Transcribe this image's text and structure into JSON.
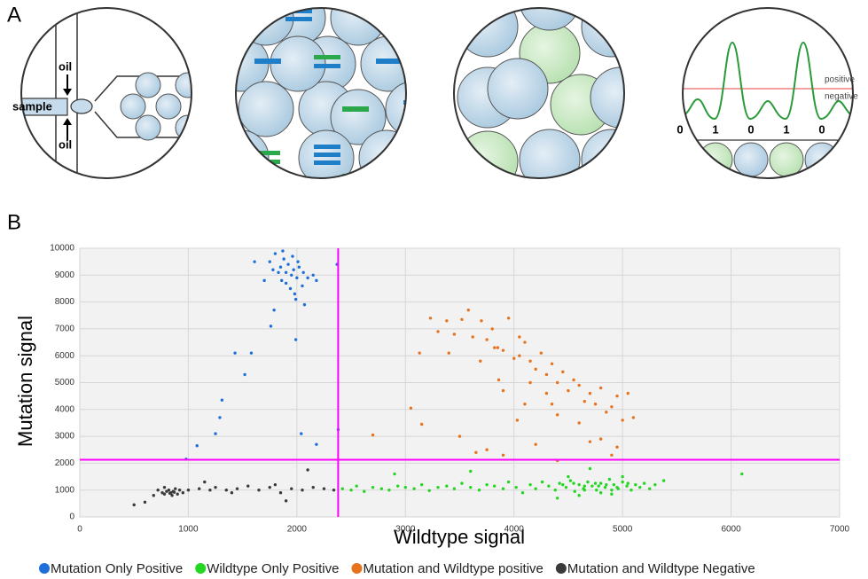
{
  "panel_labels": [
    "A",
    "B"
  ],
  "panel_a": {
    "oil_top": "oil",
    "sample": "sample",
    "oil_bottom": "oil",
    "positive": "positive",
    "negative": "negative",
    "digits": [
      "0",
      "1",
      "0",
      "1",
      "0"
    ]
  },
  "chart_data": {
    "type": "scatter",
    "x_label": "Wildtype signal",
    "y_label": "Mutation signal",
    "xlim": [
      0,
      7000
    ],
    "xticks": [
      0,
      1000,
      2000,
      3000,
      4000,
      5000,
      6000,
      7000
    ],
    "ylim": [
      0,
      10000
    ],
    "yticks": [
      0,
      1000,
      2000,
      3000,
      4000,
      5000,
      6000,
      7000,
      8000,
      9000,
      10000
    ],
    "grid": true,
    "thresholds": {
      "x": 2380,
      "y": 2130,
      "color": "#ff00ff"
    },
    "series": [
      {
        "name": "Mutation Only Positive",
        "color": "#1e6fd9",
        "x": [
          1750,
          1800,
          1850,
          1880,
          1900,
          1920,
          1950,
          1970,
          2000,
          2020,
          1860,
          1900,
          1940,
          1980,
          2050,
          2100,
          2150,
          1830,
          1870,
          1960,
          2010,
          2060,
          1780,
          1700,
          1990,
          2070,
          2180,
          1610,
          1080,
          1250,
          1290,
          1310,
          1430,
          1520,
          1580,
          1760,
          1790,
          1990,
          2040,
          2180,
          2380,
          980,
          2370
        ],
        "values": [
          9500,
          9800,
          9300,
          9600,
          9100,
          9400,
          9000,
          9200,
          8900,
          9300,
          8800,
          8700,
          8500,
          8300,
          8600,
          8900,
          9000,
          9100,
          9900,
          9700,
          9500,
          9100,
          9200,
          8800,
          8100,
          7900,
          8800,
          9500,
          2650,
          3100,
          3700,
          4350,
          6100,
          5300,
          6100,
          7100,
          7700,
          6600,
          3100,
          2700,
          3250,
          2150,
          9400
        ]
      },
      {
        "name": "Wildtype Only Positive",
        "color": "#22d622",
        "x": [
          2420,
          2500,
          2550,
          2620,
          2700,
          2780,
          2850,
          2930,
          3000,
          3080,
          3150,
          3220,
          3300,
          3380,
          3450,
          3520,
          3600,
          3680,
          3750,
          3820,
          3900,
          3950,
          4020,
          4080,
          4150,
          4200,
          4260,
          4320,
          4380,
          4420,
          4480,
          4520,
          4560,
          4600,
          4640,
          4680,
          4720,
          4760,
          4800,
          4840,
          4880,
          4920,
          4960,
          5000,
          5040,
          5080,
          5120,
          5160,
          5200,
          5250,
          5300,
          5380,
          4700,
          4800,
          4900,
          4600,
          4500,
          4400,
          5000,
          4750,
          4850,
          4650,
          4550,
          4950,
          5050,
          4450,
          3600,
          2900,
          6100,
          4650,
          4900,
          4780
        ],
        "values": [
          1050,
          1000,
          1150,
          950,
          1100,
          1050,
          1000,
          1150,
          1100,
          1050,
          1200,
          980,
          1100,
          1150,
          1050,
          1250,
          1100,
          1000,
          1200,
          1150,
          1050,
          1300,
          1100,
          900,
          1200,
          1050,
          1300,
          1150,
          1000,
          1250,
          1100,
          1350,
          950,
          1200,
          1050,
          1300,
          1150,
          1000,
          1250,
          1100,
          1400,
          1200,
          1050,
          1300,
          1150,
          1000,
          1200,
          1100,
          1250,
          1050,
          1200,
          1350,
          1800,
          900,
          850,
          800,
          1500,
          700,
          1500,
          1250,
          1200,
          1150,
          1250,
          1100,
          1250,
          1200,
          1700,
          1600,
          1600,
          1000,
          1000,
          1150
        ]
      },
      {
        "name": "Mutation and Wildtype positive",
        "color": "#e8731e",
        "x": [
          3230,
          3300,
          3380,
          3450,
          3520,
          3400,
          3580,
          3620,
          3700,
          3750,
          3800,
          3850,
          3900,
          3950,
          4000,
          4050,
          4100,
          4150,
          4200,
          4250,
          4300,
          4350,
          4400,
          4450,
          4500,
          4550,
          4600,
          4650,
          4700,
          4750,
          4800,
          4850,
          4900,
          4950,
          5000,
          5050,
          5100,
          4100,
          3900,
          4300,
          4400,
          4600,
          4800,
          4950,
          3860,
          4030,
          3690,
          3130,
          3050,
          3150,
          2700,
          3500,
          3750,
          3900,
          4200,
          4400,
          4700,
          3650,
          4900,
          4150,
          4350,
          4050,
          3820
        ],
        "values": [
          7400,
          6900,
          7300,
          6800,
          7350,
          6100,
          7700,
          6700,
          7300,
          6600,
          7000,
          6300,
          6200,
          7400,
          5900,
          6000,
          6500,
          5800,
          5500,
          6100,
          5300,
          5700,
          5000,
          5400,
          4700,
          5100,
          4900,
          4300,
          4600,
          4200,
          4800,
          3900,
          4100,
          4500,
          3600,
          4600,
          3700,
          4200,
          4700,
          4600,
          3800,
          3500,
          2900,
          2600,
          5100,
          3600,
          5800,
          6100,
          4050,
          3450,
          3050,
          3000,
          2500,
          2300,
          2700,
          2100,
          2800,
          2400,
          2300,
          5000,
          4200,
          6700,
          6300
        ]
      },
      {
        "name": "Mutation and Wildtype Negative",
        "color": "#3a3a3a",
        "x": [
          500,
          600,
          680,
          720,
          760,
          780,
          800,
          820,
          840,
          860,
          880,
          900,
          920,
          780,
          850,
          950,
          1000,
          1100,
          1200,
          1250,
          1350,
          1450,
          1550,
          1650,
          1750,
          1800,
          1850,
          1950,
          2050,
          2100,
          2150,
          2250,
          2340,
          1900,
          1400,
          1150,
          830,
          870
        ],
        "values": [
          450,
          550,
          800,
          1000,
          900,
          850,
          950,
          1000,
          900,
          950,
          1050,
          850,
          1000,
          1100,
          800,
          900,
          1000,
          1050,
          1000,
          1100,
          1000,
          1050,
          1150,
          1000,
          1100,
          1200,
          900,
          1050,
          1000,
          1750,
          1100,
          1050,
          1000,
          600,
          900,
          1300,
          880,
          920
        ]
      }
    ]
  }
}
